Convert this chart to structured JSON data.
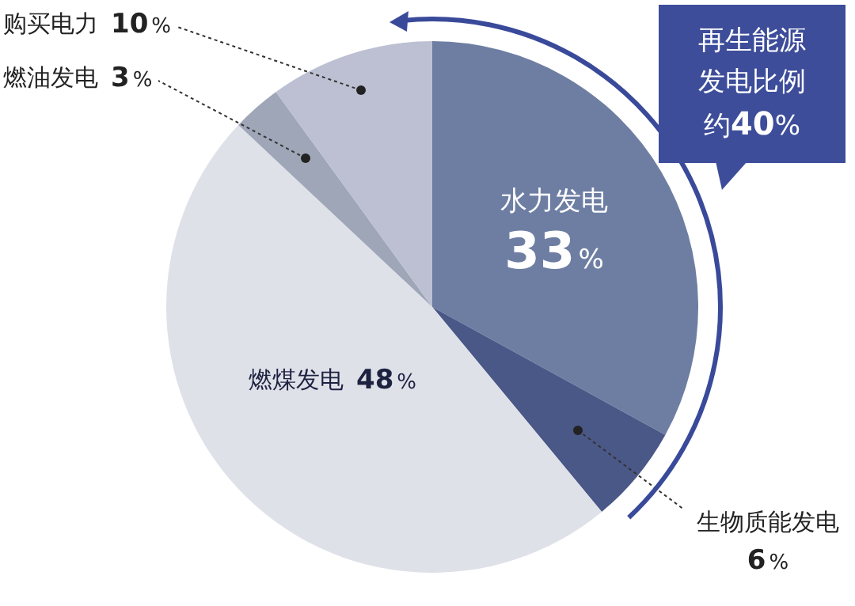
{
  "chart_data": {
    "type": "pie",
    "categories": [
      "水力发电",
      "生物质能发电",
      "燃煤发电",
      "燃油发电",
      "购买电力"
    ],
    "values": [
      33,
      6,
      48,
      3,
      10
    ],
    "colors": [
      "#6e7ea3",
      "#4a5887",
      "#dfe1e9",
      "#9ea6b8",
      "#bcc0d2"
    ],
    "value_labels": [
      "33%",
      "6%",
      "48%",
      "3%",
      "10%"
    ],
    "annotations": [
      "再生能源发电比例约40%"
    ],
    "legend": false
  }
}
